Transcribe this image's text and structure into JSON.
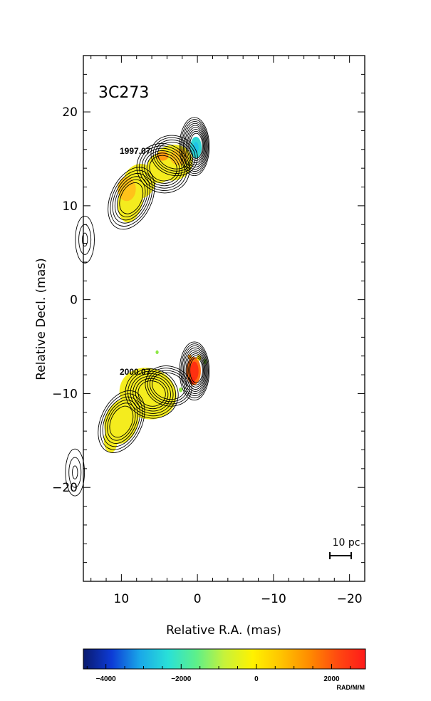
{
  "chart_data": {
    "type": "contour",
    "title": "3C273",
    "xlabel": "Relative R.A. (mas)",
    "ylabel": "Relative Decl. (mas)",
    "xlim": [
      15,
      -22
    ],
    "ylim": [
      -30,
      26
    ],
    "x_ticks": [
      10,
      0,
      -10,
      -20
    ],
    "x_tick_labels": [
      "10",
      "0",
      "−10",
      "−20"
    ],
    "y_ticks": [
      20,
      10,
      0,
      -10,
      -20
    ],
    "y_tick_labels": [
      "20",
      "10",
      "0",
      "−10",
      "−20"
    ],
    "grid": false,
    "epochs": [
      {
        "label": "1997.07",
        "core": [
          0.4,
          16.3
        ],
        "components": [
          [
            4.5,
            14.0
          ],
          [
            8.7,
            10.8
          ]
        ],
        "isolated_component": [
          14.8,
          6.4
        ]
      },
      {
        "label": "2000.07",
        "core": [
          0.4,
          -7.6
        ],
        "components": [
          [
            6.0,
            -10.0
          ],
          [
            10.0,
            -13.0
          ]
        ],
        "isolated_component": [
          16.1,
          -18.4
        ]
      }
    ],
    "scale_bar": {
      "label": "10 pc",
      "length_mas": 2.8
    },
    "colorbar": {
      "unit_label": "RAD/M/M",
      "range": [
        -4600,
        2900
      ],
      "tick_values": [
        -4000,
        -2000,
        0,
        2000
      ],
      "tick_labels": [
        "−4000",
        "−2000",
        "0",
        "2000"
      ],
      "colors": [
        "#0a1a6e",
        "#0d3bd6",
        "#1aa7e8",
        "#29e0d8",
        "#5df08a",
        "#c7f23a",
        "#fff200",
        "#ffc400",
        "#ff8c00",
        "#ff4a10",
        "#ff1a1a"
      ]
    }
  }
}
